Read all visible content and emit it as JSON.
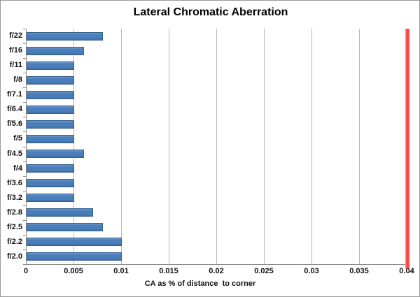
{
  "chart_data": {
    "type": "bar",
    "orientation": "horizontal",
    "title": "Lateral Chromatic Aberration",
    "xlabel": "CA as % of distance  to corner",
    "ylabel": "",
    "categories": [
      "f/22",
      "f/16",
      "f/11",
      "f/8",
      "f/7.1",
      "f/6.4",
      "f/5.6",
      "f/5",
      "f/4.5",
      "f/4",
      "f/3.6",
      "f/3.2",
      "f/2.8",
      "f/2.5",
      "f/2.2",
      "f/2.0"
    ],
    "values": [
      0.008,
      0.006,
      0.005,
      0.005,
      0.005,
      0.005,
      0.005,
      0.005,
      0.006,
      0.005,
      0.005,
      0.005,
      0.007,
      0.008,
      0.01,
      0.01
    ],
    "xlim": [
      0,
      0.04
    ],
    "xticks": [
      0,
      0.005,
      0.01,
      0.015,
      0.02,
      0.025,
      0.03,
      0.035,
      0.04
    ],
    "xtick_labels": [
      "0",
      "0.005",
      "0.01",
      "0.015",
      "0.02",
      "0.025",
      "0.03",
      "0.035",
      "0.04"
    ],
    "reference_line_x": 0.04,
    "grid": true,
    "legend": false,
    "colors": {
      "bar_fill": "#4a7ebb",
      "bar_border": "#36618f",
      "reference_line": "#ff4747",
      "gridline": "#b8b8b8",
      "axis": "#8c8c8c",
      "text": "#111111",
      "background": "#ffffff",
      "chart_border": "#9a9a9a"
    }
  }
}
